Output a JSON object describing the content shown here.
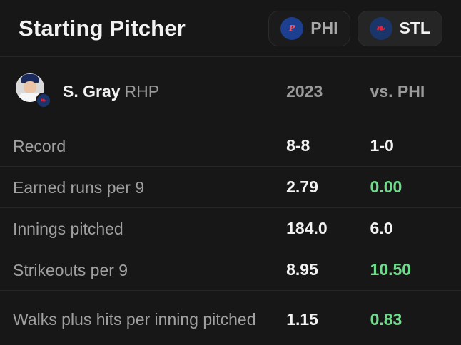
{
  "header": {
    "title": "Starting Pitcher",
    "teams": [
      {
        "abbr": "PHI",
        "logo": "phillies-logo-icon",
        "active": false
      },
      {
        "abbr": "STL",
        "logo": "cardinals-logo-icon",
        "active": true
      }
    ]
  },
  "pitcher": {
    "name": "S. Gray",
    "hand": "RHP",
    "avatar": "player-avatar",
    "team_badge": "cardinals-logo-icon"
  },
  "columns": [
    "2023",
    "vs. PHI"
  ],
  "rows": [
    {
      "label": "Record",
      "season": "8-8",
      "vs": "1-0",
      "vs_highlight": false
    },
    {
      "label": "Earned runs per 9",
      "season": "2.79",
      "vs": "0.00",
      "vs_highlight": true
    },
    {
      "label": "Innings pitched",
      "season": "184.0",
      "vs": "6.0",
      "vs_highlight": false
    },
    {
      "label": "Strikeouts per 9",
      "season": "8.95",
      "vs": "10.50",
      "vs_highlight": true
    },
    {
      "label": "Walks plus hits per inning pitched",
      "season": "1.15",
      "vs": "0.83",
      "vs_highlight": true
    }
  ],
  "colors": {
    "background": "#171717",
    "highlight_green": "#6fdc8c",
    "muted_text": "#a0a0a0"
  }
}
